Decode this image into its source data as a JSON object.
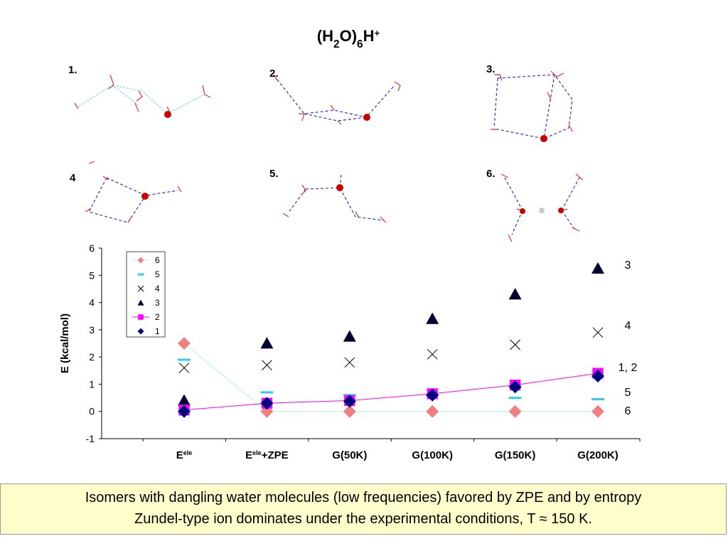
{
  "title": [
    {
      "text": "(H"
    },
    {
      "text": "2",
      "sub": true
    },
    {
      "text": "O)"
    },
    {
      "text": "6",
      "sub": true
    },
    {
      "text": "H"
    },
    {
      "text": "+",
      "sup": true
    }
  ],
  "structures": [
    "1.",
    "2.",
    "3.",
    "4",
    "5.",
    "6."
  ],
  "chart_data": {
    "type": "scatter",
    "y_label": "E (kcal/mol)",
    "categories": [
      [
        {
          "text": "E"
        },
        {
          "text": "ele",
          "sup": true
        }
      ],
      [
        {
          "text": "E"
        },
        {
          "text": "ele",
          "sup": true
        },
        {
          "text": "+ZPE"
        }
      ],
      [
        {
          "text": "G(50K)"
        }
      ],
      [
        {
          "text": "G(100K)"
        }
      ],
      [
        {
          "text": "G(150K)"
        }
      ],
      [
        {
          "text": "G(200K)"
        }
      ]
    ],
    "ylim": [
      -1,
      6
    ],
    "yticks": [
      -1,
      0,
      1,
      2,
      3,
      4,
      5,
      6
    ],
    "series": [
      {
        "name": "6",
        "marker": "diamond",
        "color": "#f08080",
        "line_color": "#b8ecec",
        "values": [
          2.5,
          0,
          0,
          0,
          0,
          0
        ]
      },
      {
        "name": "5",
        "marker": "dash",
        "color": "#33ccee",
        "values": [
          1.9,
          0.7,
          0.6,
          0.6,
          0.5,
          0.45
        ]
      },
      {
        "name": "4",
        "marker": "cross",
        "color": "#000000",
        "values": [
          1.6,
          1.7,
          1.8,
          2.1,
          2.45,
          2.9
        ]
      },
      {
        "name": "3",
        "marker": "triangle",
        "color": "#000033",
        "values": [
          0.4,
          2.5,
          2.75,
          3.4,
          4.3,
          5.25
        ]
      },
      {
        "name": "2",
        "marker": "square",
        "color": "#ff00ff",
        "line_color": "#ff00ff",
        "values": [
          0.05,
          0.3,
          0.4,
          0.65,
          0.97,
          1.4
        ]
      },
      {
        "name": "1",
        "marker": "diamond",
        "color": "#000080",
        "values": [
          0,
          0.3,
          0.37,
          0.6,
          0.9,
          1.3
        ]
      }
    ],
    "annotations": [
      "3",
      "4",
      "1, 2",
      "5",
      "6"
    ]
  },
  "caption": [
    "Isomers with dangling water molecules (low frequencies) favored by ZPE and by entropy",
    "Zundel-type ion dominates under the experimental conditions, T ≈ 150 K."
  ]
}
